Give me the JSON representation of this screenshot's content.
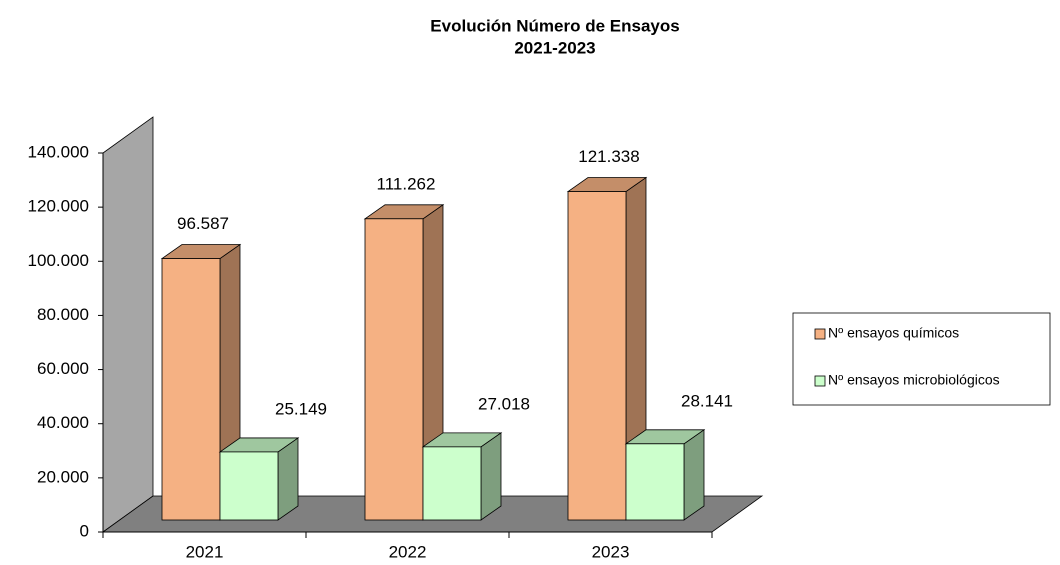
{
  "chart_data": {
    "type": "bar3d",
    "title": "Evolución Número de Ensayos",
    "subtitle": "2021-2023",
    "categories": [
      "2021",
      "2022",
      "2023"
    ],
    "series": [
      {
        "name": "Nº ensayos químicos",
        "color": "#f5b183",
        "values": [
          96587,
          111262,
          121338
        ],
        "value_labels": [
          "96.587",
          "111.262",
          "121.338"
        ]
      },
      {
        "name": "Nº ensayos microbiológicos",
        "color": "#ccffcc",
        "values": [
          25149,
          27018,
          28141
        ],
        "value_labels": [
          "25.149",
          "27.018",
          "28.141"
        ]
      }
    ],
    "ylim": [
      0,
      140000
    ],
    "yticks": [
      0,
      {
        "value": 20000,
        "label": "20.000"
      },
      {
        "value": 40000,
        "label": "40.000"
      },
      {
        "value": 60000,
        "label": "60.000"
      },
      {
        "value": 80000,
        "label": "80.000"
      },
      {
        "value": 100000,
        "label": "100.000"
      },
      {
        "value": 120000,
        "label": "120.000"
      },
      {
        "value": 140000,
        "label": "140.000"
      }
    ],
    "legend": "right"
  }
}
